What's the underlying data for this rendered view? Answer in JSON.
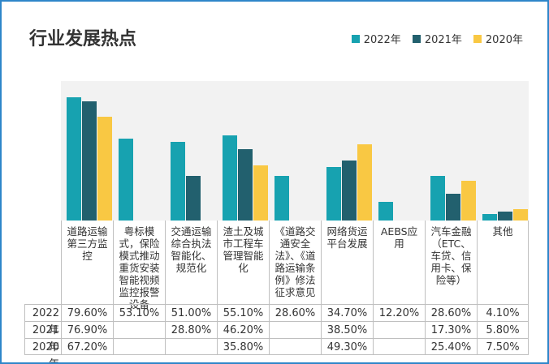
{
  "chart_data": {
    "type": "bar",
    "title": "行业发展热点",
    "categories": [
      "道路运输第三方监控",
      "粤标模式，保险模式推动重货安装智能视频监控报警设备",
      "交通运输综合执法智能化、规范化",
      "渣土及城市工程车管理智能化",
      "《道路交通安全法》、《道路运输条例》修法征求意见",
      "网络货运平台发展",
      "AEBS应用",
      "汽车金融（ETC、车贷、信用卡、保险等）",
      "其他"
    ],
    "series": [
      {
        "name": "2022年",
        "color": "#17a2b0",
        "values": [
          79.6,
          53.1,
          51.0,
          55.1,
          28.6,
          34.7,
          12.2,
          28.6,
          4.1
        ],
        "value_labels": [
          "79.60%",
          "53.10%",
          "51.00%",
          "55.10%",
          "28.60%",
          "34.70%",
          "12.20%",
          "28.60%",
          "4.10%"
        ]
      },
      {
        "name": "2021年",
        "color": "#22606e",
        "values": [
          76.9,
          null,
          28.8,
          46.2,
          null,
          38.5,
          null,
          17.3,
          5.8
        ],
        "value_labels": [
          "76.90%",
          null,
          "28.80%",
          "46.20%",
          null,
          "38.50%",
          null,
          "17.30%",
          "5.80%"
        ]
      },
      {
        "name": "2020年",
        "color": "#f9c843",
        "values": [
          67.2,
          null,
          null,
          35.8,
          null,
          49.3,
          null,
          25.4,
          7.5
        ],
        "value_labels": [
          "67.20%",
          null,
          null,
          "35.80%",
          null,
          "49.30%",
          null,
          "25.40%",
          "7.50%"
        ]
      }
    ],
    "ylim": [
      0,
      90
    ],
    "legend": "top-right"
  }
}
